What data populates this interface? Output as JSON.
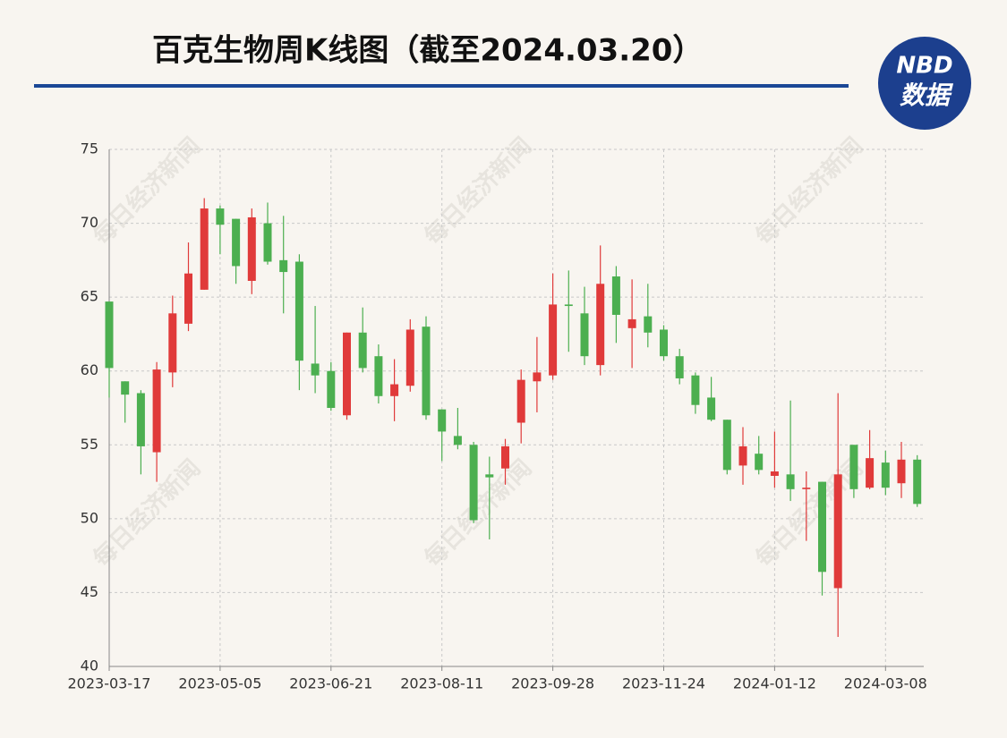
{
  "chart_data": {
    "type": "candlestick",
    "title": "百克生物周K线图（截至2024.03.20）",
    "categories": [
      "2023-03-17",
      null,
      null,
      null,
      null,
      null,
      null,
      "2023-05-05",
      null,
      null,
      null,
      null,
      null,
      null,
      "2023-06-21",
      null,
      null,
      null,
      null,
      null,
      null,
      "2023-08-11",
      null,
      null,
      null,
      null,
      null,
      null,
      "2023-09-28",
      null,
      null,
      null,
      null,
      null,
      null,
      "2023-11-24",
      null,
      null,
      null,
      null,
      null,
      null,
      "2024-01-12",
      null,
      null,
      null,
      null,
      null,
      null,
      "2024-03-08",
      null,
      null
    ],
    "open": [
      64.7,
      59.3,
      58.5,
      54.5,
      59.9,
      63.2,
      65.5,
      71.0,
      70.3,
      66.1,
      70.0,
      67.5,
      67.4,
      60.5,
      60.0,
      57.0,
      62.6,
      61.0,
      58.3,
      59.0,
      63.0,
      57.4,
      55.6,
      55.0,
      53.0,
      53.4,
      56.5,
      59.3,
      59.7,
      64.5,
      63.9,
      60.4,
      66.4,
      62.9,
      63.7,
      62.8,
      61.0,
      59.7,
      58.2,
      56.7,
      53.6,
      54.4,
      52.9,
      53.0,
      52.0,
      52.5,
      45.3,
      55.0,
      52.1,
      53.8,
      52.4,
      54.0
    ],
    "close": [
      60.2,
      58.4,
      54.9,
      60.1,
      63.9,
      66.6,
      71.0,
      69.9,
      67.1,
      70.4,
      67.4,
      66.7,
      60.7,
      59.7,
      57.5,
      62.6,
      60.2,
      58.3,
      59.1,
      62.8,
      57.0,
      55.9,
      55.0,
      49.9,
      52.8,
      54.9,
      59.4,
      59.9,
      64.5,
      64.4,
      61.0,
      65.9,
      63.8,
      63.5,
      62.6,
      61.0,
      59.5,
      57.7,
      56.7,
      53.3,
      54.9,
      53.3,
      53.2,
      52.0,
      52.1,
      46.4,
      53.0,
      52.0,
      54.1,
      52.1,
      54.0,
      51.0
    ],
    "high": [
      64.7,
      59.3,
      58.7,
      60.6,
      65.1,
      68.7,
      71.7,
      71.2,
      70.3,
      71.0,
      71.4,
      70.5,
      67.9,
      64.4,
      60.6,
      62.6,
      64.3,
      61.8,
      60.8,
      63.5,
      63.7,
      57.4,
      57.5,
      55.2,
      54.2,
      55.4,
      60.1,
      62.3,
      66.6,
      66.8,
      65.7,
      68.5,
      67.1,
      66.2,
      65.9,
      63.1,
      61.5,
      59.9,
      59.6,
      56.7,
      56.2,
      55.6,
      55.9,
      58.0,
      53.2,
      52.5,
      58.5,
      55.0,
      56.0,
      54.6,
      55.2,
      54.3
    ],
    "low": [
      58.2,
      56.5,
      53.0,
      52.5,
      58.9,
      62.7,
      65.5,
      67.9,
      65.9,
      65.2,
      67.2,
      63.9,
      58.7,
      58.5,
      57.3,
      56.7,
      59.9,
      57.8,
      56.6,
      58.6,
      56.7,
      53.9,
      54.7,
      49.7,
      48.6,
      52.3,
      55.1,
      57.2,
      59.4,
      61.3,
      60.4,
      59.7,
      61.9,
      60.2,
      61.6,
      60.7,
      59.1,
      57.1,
      56.6,
      53.0,
      52.3,
      53.0,
      52.1,
      51.2,
      48.5,
      44.8,
      42.0,
      51.4,
      52.0,
      51.6,
      51.4,
      50.8
    ],
    "up_color": "#e03a3a",
    "down_color": "#4caf50",
    "ylim": [
      40,
      75
    ],
    "yticks": [
      40,
      45,
      50,
      55,
      60,
      65,
      70,
      75
    ],
    "grid": true
  },
  "logo": {
    "top": "NBD",
    "bottom": "数据"
  },
  "watermark": "每日经济新闻"
}
